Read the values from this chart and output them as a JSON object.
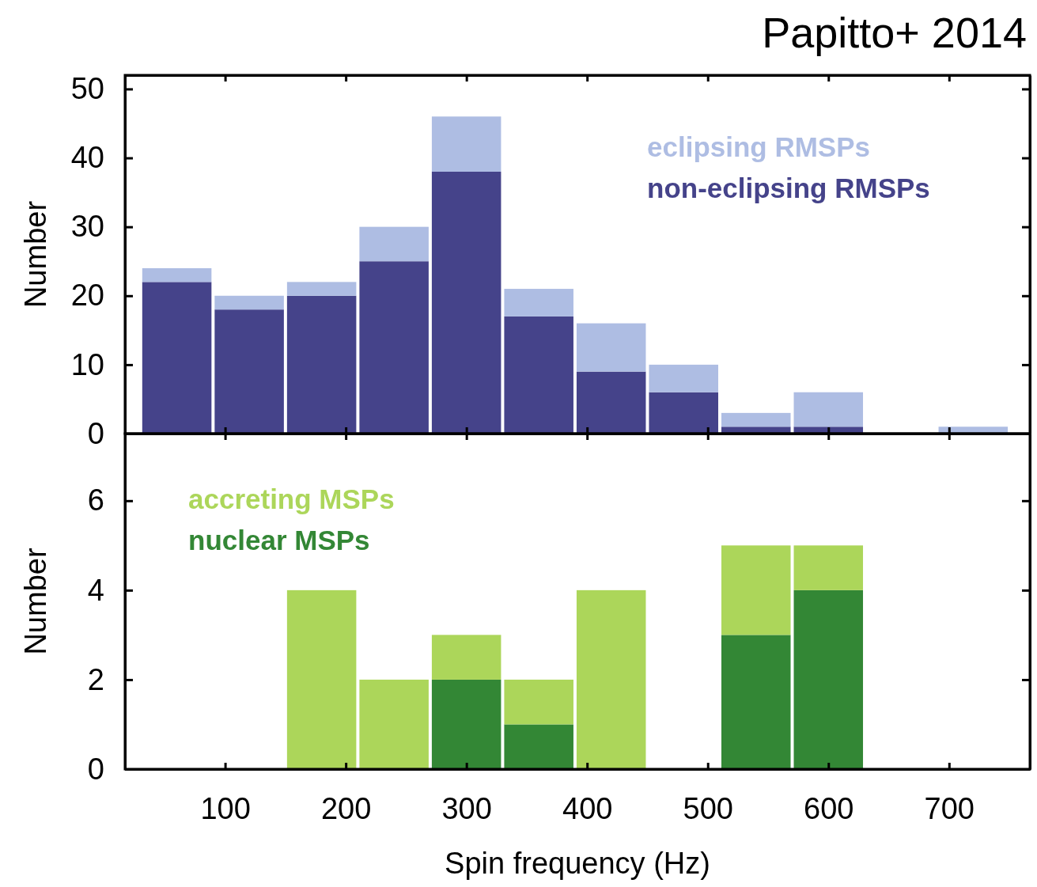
{
  "chart_data": [
    {
      "type": "bar",
      "ylabel": "Number",
      "annotations": [
        "Papitto+ 2014"
      ],
      "x": [
        60,
        120,
        180,
        240,
        300,
        360,
        420,
        480,
        540,
        600,
        660,
        720
      ],
      "stacked": true,
      "xlim": [
        17,
        767
      ],
      "xticks": [
        100,
        200,
        300,
        400,
        500,
        600,
        700
      ],
      "ylim": [
        0,
        52
      ],
      "yticks": [
        0,
        10,
        20,
        30,
        40,
        50
      ],
      "tick_labels": "y",
      "legend": "top right",
      "series": [
        {
          "name": "non-eclipsing RMSPs",
          "color": "#45438a",
          "values": [
            22,
            18,
            20,
            25,
            38,
            17,
            9,
            6,
            1,
            1,
            0,
            0
          ]
        },
        {
          "name": "eclipsing RMSPs",
          "color": "#aebde3",
          "values": [
            2,
            2,
            2,
            5,
            8,
            4,
            7,
            4,
            2,
            5,
            0,
            1
          ]
        }
      ]
    },
    {
      "type": "bar",
      "xlabel": "Spin frequency (Hz)",
      "ylabel": "Number",
      "x": [
        60,
        120,
        180,
        240,
        300,
        360,
        420,
        480,
        540,
        600,
        660,
        720
      ],
      "stacked": true,
      "xlim": [
        17,
        767
      ],
      "xticks": [
        100,
        200,
        300,
        400,
        500,
        600,
        700
      ],
      "ylim": [
        0,
        7.5
      ],
      "yticks": [
        0,
        2,
        4,
        6
      ],
      "legend": "top left",
      "series": [
        {
          "name": "nuclear MSPs",
          "color": "#338735",
          "values": [
            0,
            0,
            0,
            0,
            2,
            1,
            0,
            0,
            3,
            4,
            0,
            0
          ]
        },
        {
          "name": "accreting MSPs",
          "color": "#acd65a",
          "values": [
            0,
            0,
            4,
            2,
            1,
            1,
            4,
            0,
            2,
            1,
            0,
            0
          ]
        }
      ]
    }
  ]
}
